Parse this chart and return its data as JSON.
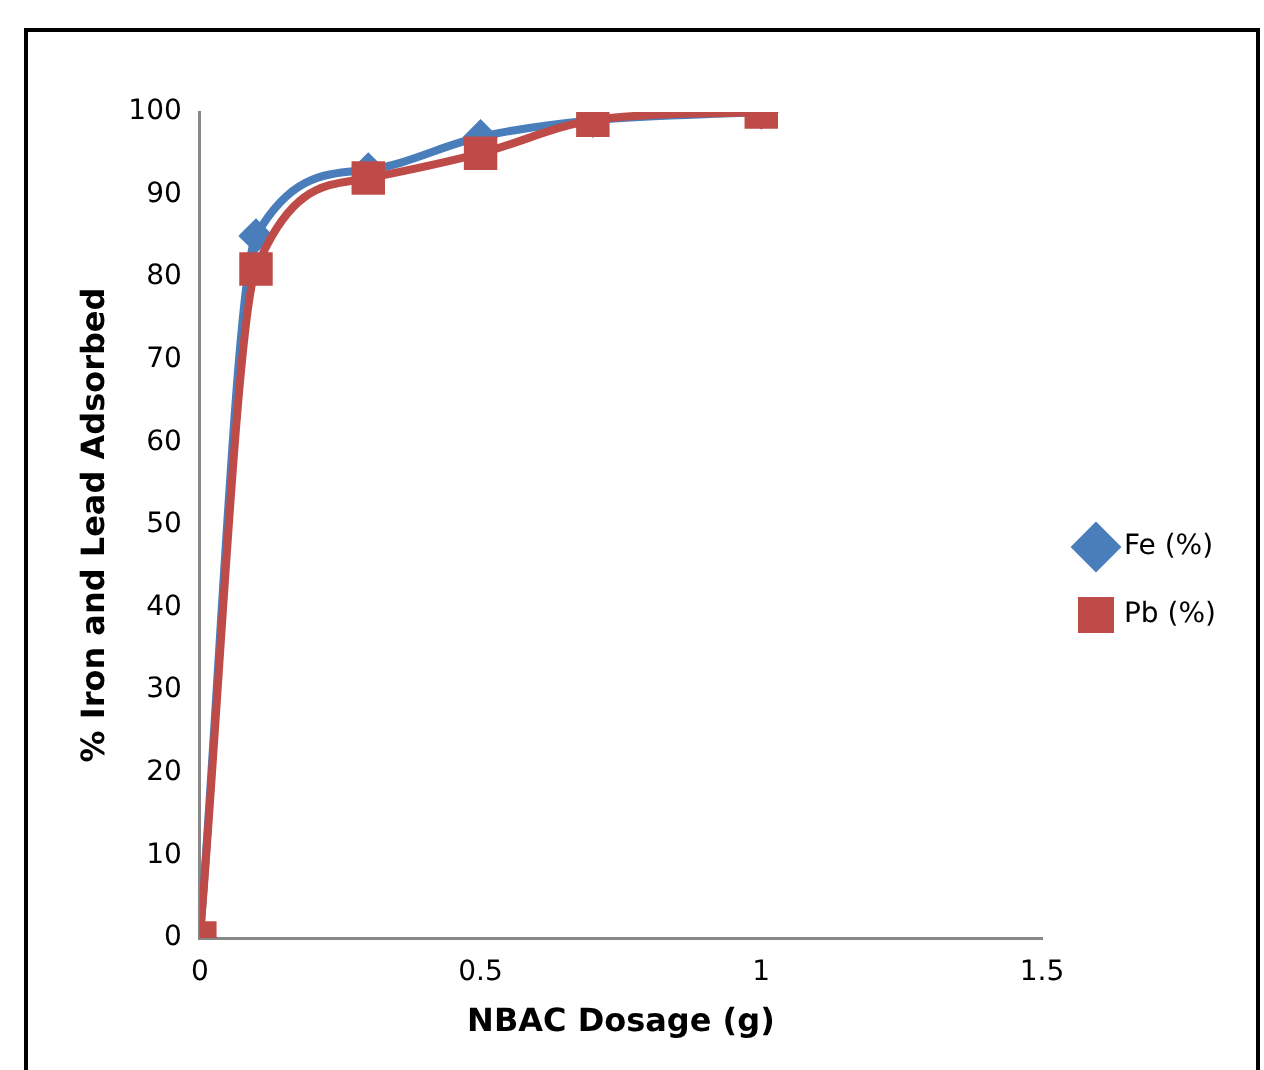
{
  "chart_data": {
    "type": "line",
    "xlabel": "NBAC Dosage (g)",
    "ylabel": "% Iron and Lead Adsorbed",
    "x": [
      0,
      0.1,
      0.3,
      0.5,
      0.7,
      1
    ],
    "series": [
      {
        "name": "Fe (%)",
        "color": "#4a7ebb",
        "marker": "diamond",
        "values": [
          0,
          85,
          93,
          97,
          99,
          100
        ]
      },
      {
        "name": "Pb (%)",
        "color": "#be4b48",
        "marker": "square",
        "values": [
          0,
          81,
          92,
          95,
          99,
          100
        ]
      }
    ],
    "xlim": [
      0,
      1.5
    ],
    "xticks": [
      0,
      0.5,
      1,
      1.5
    ],
    "ylim": [
      0,
      100
    ],
    "yticks": [
      0,
      10,
      20,
      30,
      40,
      50,
      60,
      70,
      80,
      90,
      100
    ],
    "grid": false,
    "legend": "right",
    "line_style": "solid"
  }
}
